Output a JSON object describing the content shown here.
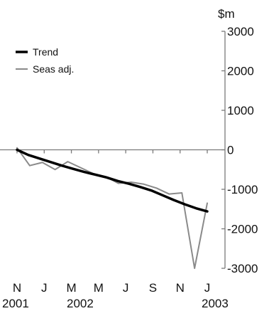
{
  "chart_data": {
    "type": "line",
    "unit": "$m",
    "ylim": [
      -3000,
      3000
    ],
    "yticks": [
      3000,
      2000,
      1000,
      0,
      -1000,
      -2000,
      -3000
    ],
    "xticks": [
      "N",
      "J",
      "M",
      "M",
      "J",
      "S",
      "N",
      "J"
    ],
    "year_labels": [
      "2001",
      "2002",
      "2003"
    ],
    "grid": false,
    "legend_position": "top-left",
    "series": [
      {
        "name": "Trend",
        "color": "#000000",
        "values": [
          0,
          -130,
          -220,
          -310,
          -400,
          -480,
          -560,
          -630,
          -700,
          -790,
          -860,
          -940,
          -1030,
          -1150,
          -1270,
          -1380,
          -1480,
          -1560
        ]
      },
      {
        "name": "Seas adj.",
        "color": "#8a8a8a",
        "values": [
          50,
          -400,
          -320,
          -500,
          -300,
          -450,
          -600,
          -680,
          -850,
          -820,
          -870,
          -970,
          -1120,
          -1090,
          -3000,
          -1350
        ]
      }
    ]
  }
}
